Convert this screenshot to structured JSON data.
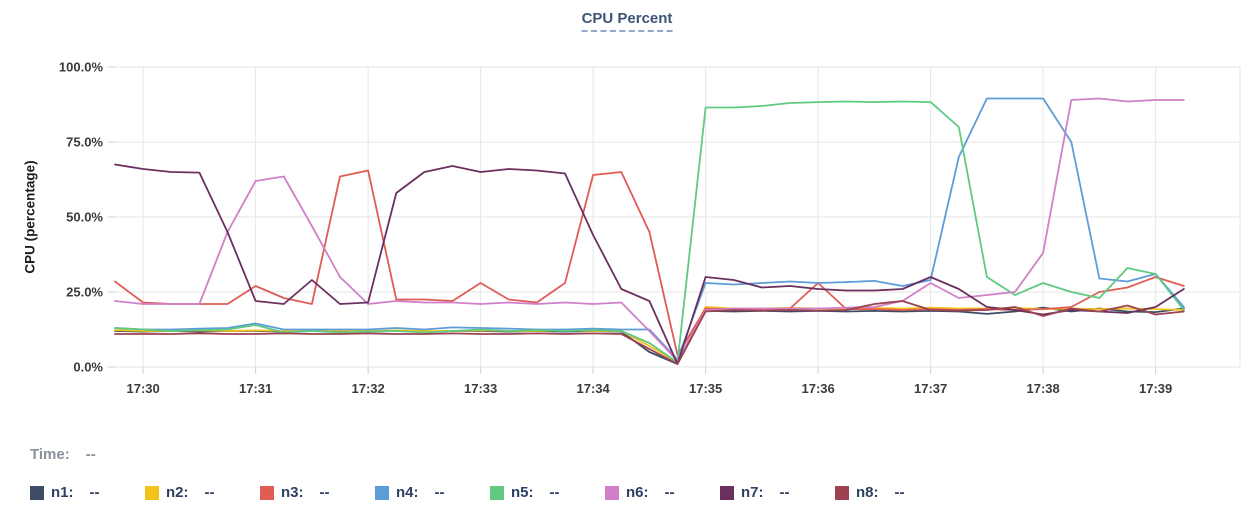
{
  "title": "CPU Percent",
  "chart_data": {
    "type": "line",
    "title": "CPU Percent",
    "xlabel": "",
    "ylabel": "CPU (percentage)",
    "ylim": [
      0,
      100
    ],
    "grid": true,
    "legend_position": "bottom",
    "y_ticks": [
      {
        "value": 0,
        "label": "0.0%"
      },
      {
        "value": 25,
        "label": "25.0%"
      },
      {
        "value": 50,
        "label": "50.0%"
      },
      {
        "value": 75,
        "label": "75.0%"
      },
      {
        "value": 100,
        "label": "100.0%"
      }
    ],
    "x_domain_minutes": [
      29.75,
      39.75
    ],
    "x_ticks": [
      {
        "minute": 30,
        "label": "17:30"
      },
      {
        "minute": 31,
        "label": "17:31"
      },
      {
        "minute": 32,
        "label": "17:32"
      },
      {
        "minute": 33,
        "label": "17:33"
      },
      {
        "minute": 34,
        "label": "17:34"
      },
      {
        "minute": 35,
        "label": "17:35"
      },
      {
        "minute": 36,
        "label": "17:36"
      },
      {
        "minute": 37,
        "label": "17:37"
      },
      {
        "minute": 38,
        "label": "17:38"
      },
      {
        "minute": 39,
        "label": "17:39"
      }
    ],
    "sample_start_minute": 29.75,
    "sample_step_minutes": 0.25,
    "series": [
      {
        "name": "n1",
        "color": "#3e4c66",
        "values": [
          12,
          11.8,
          12,
          11.8,
          12,
          12,
          11.8,
          12,
          11.8,
          12,
          12,
          11.8,
          12,
          12,
          11.8,
          12,
          11.8,
          12,
          11.8,
          5,
          1,
          18.7,
          18.5,
          18.7,
          18.5,
          18.7,
          18.5,
          18.7,
          18.5,
          18.7,
          18.5,
          17.7,
          18.5,
          19.8,
          18.5,
          19.5,
          18.5,
          18.3,
          19.5
        ]
      },
      {
        "name": "n2",
        "color": "#f3c21b",
        "values": [
          12.3,
          12,
          12,
          12.2,
          12,
          12.2,
          12,
          12,
          12.2,
          12,
          12.2,
          12,
          12,
          12.2,
          12,
          12,
          12.2,
          12,
          12,
          7,
          1.5,
          20,
          19.5,
          19.5,
          19.7,
          19.5,
          19.5,
          19.7,
          19.5,
          19.8,
          19.5,
          19.5,
          19.7,
          19.3,
          19.5,
          19.3,
          19.5,
          19.3,
          19
        ]
      },
      {
        "name": "n3",
        "color": "#e05c55",
        "values": [
          28.5,
          21.5,
          21,
          21,
          21,
          27,
          23,
          21,
          63.5,
          65.5,
          22.5,
          22.5,
          22,
          28,
          22.5,
          21.5,
          28,
          64,
          65,
          45,
          4,
          19.5,
          19.3,
          19.3,
          19.5,
          28,
          19.3,
          19.3,
          19,
          19.3,
          19,
          19.3,
          19,
          19.3,
          20,
          25,
          26.5,
          30,
          27
        ]
      },
      {
        "name": "n4",
        "color": "#5e9cd8",
        "values": [
          13,
          12.5,
          12.5,
          12.8,
          13,
          14.5,
          12.5,
          12.5,
          12.5,
          12.5,
          13,
          12.5,
          13.2,
          13,
          12.8,
          12.5,
          12.5,
          12.8,
          12.5,
          12.5,
          2.5,
          28,
          27.5,
          28,
          28.5,
          28,
          28.3,
          28.7,
          27,
          29,
          70,
          89.5,
          89.5,
          89.5,
          75,
          29.5,
          28.5,
          31,
          20
        ]
      },
      {
        "name": "n5",
        "color": "#5fca80",
        "values": [
          13,
          12.5,
          12,
          12.3,
          12.5,
          14,
          11.5,
          12,
          11.5,
          11.8,
          12,
          11.5,
          12,
          12.5,
          12,
          12.3,
          12,
          12.3,
          12,
          8,
          1.5,
          86.5,
          86.5,
          87,
          88,
          88.3,
          88.5,
          88.3,
          88.5,
          88.3,
          80,
          30,
          24,
          28,
          25,
          23,
          33,
          31,
          19
        ]
      },
      {
        "name": "n6",
        "color": "#d07fc8",
        "values": [
          22,
          21,
          21,
          21,
          45,
          62,
          63.5,
          47,
          30,
          21,
          22,
          21.5,
          21.5,
          21,
          21.5,
          21,
          21.5,
          21,
          21.5,
          12,
          2,
          19,
          19.5,
          19.5,
          19.5,
          19.5,
          19.8,
          20,
          22,
          28,
          23,
          24,
          25,
          38,
          89,
          89.5,
          88.5,
          89,
          89
        ]
      },
      {
        "name": "n7",
        "color": "#6b2f60",
        "values": [
          67.5,
          66,
          65,
          64.8,
          45,
          22,
          21,
          29,
          21,
          21.5,
          58,
          65,
          67,
          65,
          66,
          65.5,
          64.5,
          44,
          26,
          22,
          1,
          30,
          29,
          26.5,
          27,
          26,
          25.5,
          25.5,
          26,
          30,
          26,
          20,
          19,
          17.5,
          19,
          18.5,
          18,
          20,
          26
        ]
      },
      {
        "name": "n8",
        "color": "#9c4251",
        "values": [
          11,
          11,
          11,
          11.2,
          11,
          11,
          11.2,
          11,
          11,
          11.2,
          11,
          11,
          11.2,
          11,
          11,
          11.2,
          11,
          11.2,
          11,
          6,
          1,
          18.5,
          19,
          18.8,
          19,
          18.8,
          19,
          21,
          22,
          19,
          18.8,
          19,
          20,
          17,
          19.5,
          18.5,
          20.5,
          17.5,
          18.5
        ]
      }
    ]
  },
  "status_bar": {
    "time_label": "Time:",
    "time_value": "--"
  },
  "legend": {
    "items": [
      {
        "label": "n1:",
        "value": "--",
        "color": "#3e4c66"
      },
      {
        "label": "n2:",
        "value": "--",
        "color": "#f3c21b"
      },
      {
        "label": "n3:",
        "value": "--",
        "color": "#e05c55"
      },
      {
        "label": "n4:",
        "value": "--",
        "color": "#5e9cd8"
      },
      {
        "label": "n5:",
        "value": "--",
        "color": "#5fca80"
      },
      {
        "label": "n6:",
        "value": "--",
        "color": "#d07fc8"
      },
      {
        "label": "n7:",
        "value": "--",
        "color": "#6b2f60"
      },
      {
        "label": "n8:",
        "value": "--",
        "color": "#9c4251"
      }
    ]
  }
}
